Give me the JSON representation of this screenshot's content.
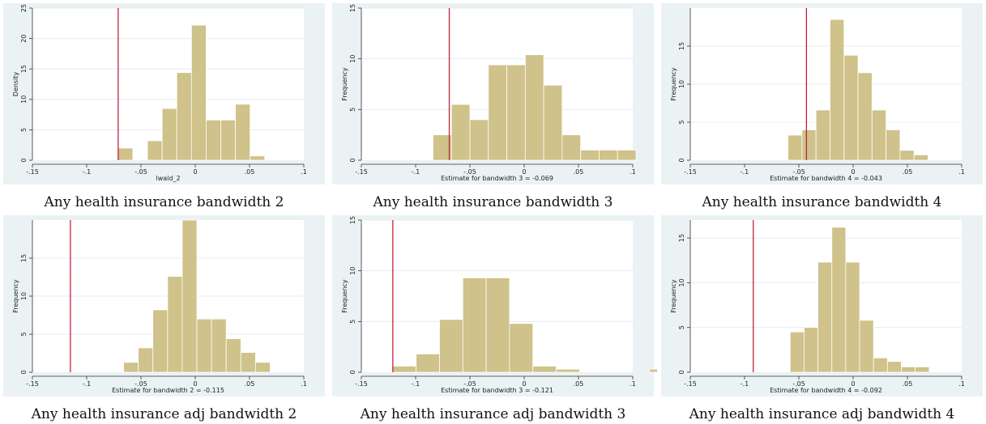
{
  "chart_data": [
    {
      "type": "bar",
      "caption": "Any health insurance bandwidth 2",
      "xlabel": "lwald_2",
      "ylabel": "Density",
      "xlim": [
        -0.15,
        0.1
      ],
      "ylim": [
        0,
        25
      ],
      "xticks": [
        -0.15,
        -0.1,
        -0.05,
        0,
        0.05,
        0.1
      ],
      "xtick_labels": [
        "-.15",
        "-.1",
        "-.05",
        "0",
        ".05",
        ".1"
      ],
      "yticks": [
        0,
        5,
        10,
        15,
        20,
        25
      ],
      "ytick_labels": [
        "0",
        "5",
        "10",
        "15",
        "20",
        "25"
      ],
      "refline": -0.071,
      "bin_edges": [
        -0.071,
        -0.0575,
        -0.044,
        -0.0305,
        -0.017,
        -0.0035,
        0.01,
        0.0235,
        0.037,
        0.0505,
        0.064
      ],
      "values": [
        2,
        0,
        3.2,
        8.5,
        14.4,
        22.2,
        6.6,
        6.6,
        9.2,
        0.7
      ]
    },
    {
      "type": "bar",
      "caption": "Any health insurance bandwidth 3",
      "xlabel": "Estimate for bandwidth 3 = -0.069",
      "ylabel": "Frequency",
      "xlim": [
        -0.15,
        0.1
      ],
      "ylim": [
        0,
        15
      ],
      "xticks": [
        -0.15,
        -0.1,
        -0.05,
        0,
        0.05,
        0.1
      ],
      "xtick_labels": [
        "-.15",
        "-.1",
        "-.05",
        "0",
        ".05",
        ".1"
      ],
      "yticks": [
        0,
        5,
        10,
        15
      ],
      "ytick_labels": [
        "0",
        "5",
        "10",
        "15"
      ],
      "refline": -0.069,
      "bin_edges": [
        -0.084,
        -0.067,
        -0.05,
        -0.033,
        -0.016,
        0.001,
        0.018,
        0.035,
        0.052,
        0.069,
        0.086,
        0.103
      ],
      "values": [
        2.5,
        5.5,
        4,
        9.4,
        9.4,
        10.4,
        7.4,
        2.5,
        1,
        1,
        1
      ]
    },
    {
      "type": "bar",
      "caption": "Any health insurance bandwidth 4",
      "xlabel": "Estimate for bandwidth 4 = -0.043",
      "ylabel": "Frequency",
      "xlim": [
        -0.15,
        0.1
      ],
      "ylim": [
        0,
        20
      ],
      "xticks": [
        -0.15,
        -0.1,
        -0.05,
        0,
        0.05,
        0.1
      ],
      "xtick_labels": [
        "-.15",
        "-.1",
        "-.05",
        "0",
        ".05",
        ".1"
      ],
      "yticks": [
        0,
        5,
        10,
        15
      ],
      "ytick_labels": [
        "0",
        "5",
        "10",
        "15"
      ],
      "refline": -0.043,
      "bin_edges": [
        -0.06,
        -0.0471,
        -0.0342,
        -0.0213,
        -0.0084,
        0.0045,
        0.0174,
        0.0303,
        0.0432,
        0.0561,
        0.069,
        0.0819
      ],
      "values": [
        3.3,
        4,
        6.6,
        18.5,
        13.8,
        11.5,
        6.6,
        4,
        1.3,
        0.7,
        0
      ]
    },
    {
      "type": "bar",
      "caption": "Any health insurance adj bandwidth 2",
      "xlabel": "Estimate for bandwidth 2 = -0.115",
      "ylabel": "Frequency",
      "xlim": [
        -0.15,
        0.1
      ],
      "ylim": [
        0,
        20
      ],
      "xticks": [
        -0.15,
        -0.1,
        -0.05,
        0,
        0.05,
        0.1
      ],
      "xtick_labels": [
        "-.15",
        "-.1",
        "-.05",
        "0",
        ".05",
        ".1"
      ],
      "yticks": [
        0,
        5,
        10,
        15
      ],
      "ytick_labels": [
        "0",
        "5",
        "10",
        "15"
      ],
      "refline": -0.115,
      "bin_edges": [
        -0.066,
        -0.0525,
        -0.039,
        -0.0255,
        -0.012,
        0.0015,
        0.015,
        0.0285,
        0.042,
        0.0555,
        0.069,
        0.0825
      ],
      "values": [
        1.3,
        3.2,
        8.2,
        12.6,
        20,
        7,
        7,
        4.4,
        2.6,
        1.3,
        0
      ]
    },
    {
      "type": "bar",
      "caption": "Any health insurance adj bandwidth 3",
      "xlabel": "Estimate for bandwidth 3 = -0.121",
      "ylabel": "Frequency",
      "xlim": [
        -0.15,
        0.1
      ],
      "ylim": [
        0,
        15
      ],
      "xticks": [
        -0.15,
        -0.1,
        -0.05,
        0,
        0.05,
        0.1
      ],
      "xtick_labels": [
        "-.15",
        "-.1",
        "-.05",
        "0",
        ".05",
        ".1"
      ],
      "yticks": [
        0,
        5,
        10,
        15
      ],
      "ytick_labels": [
        "0",
        "5",
        "10",
        "15"
      ],
      "refline": -0.121,
      "bin_edges": [
        -0.121,
        -0.0995,
        -0.078,
        -0.0565,
        -0.035,
        -0.0135,
        0.008,
        0.0295,
        0.051,
        0.0725,
        0.094,
        0.1155,
        0.137,
        0.1585
      ],
      "values": [
        0.6,
        1.8,
        5.2,
        9.3,
        9.3,
        4.8,
        0.6,
        0.3,
        0,
        0,
        0,
        0.3,
        0
      ]
    },
    {
      "type": "bar",
      "caption": "Any health insurance adj bandwidth 4",
      "xlabel": "Estimate for bandwidth 4 = -0.092",
      "ylabel": "Frequency",
      "xlim": [
        -0.15,
        0.1
      ],
      "ylim": [
        0,
        17
      ],
      "xticks": [
        -0.15,
        -0.1,
        -0.05,
        0,
        0.05,
        0.1
      ],
      "xtick_labels": [
        "-.15",
        "-.1",
        "-.05",
        "0",
        ".05",
        ".1"
      ],
      "yticks": [
        0,
        5,
        10,
        15
      ],
      "ytick_labels": [
        "0",
        "5",
        "10",
        "15"
      ],
      "refline": -0.092,
      "bin_edges": [
        -0.058,
        -0.0452,
        -0.0324,
        -0.0196,
        -0.0068,
        0.006,
        0.0188,
        0.0316,
        0.0444,
        0.0572,
        0.07,
        0.0828
      ],
      "values": [
        4.5,
        5,
        12.3,
        16.2,
        12.3,
        5.8,
        1.6,
        1.2,
        0.6,
        0.6,
        0
      ]
    }
  ]
}
